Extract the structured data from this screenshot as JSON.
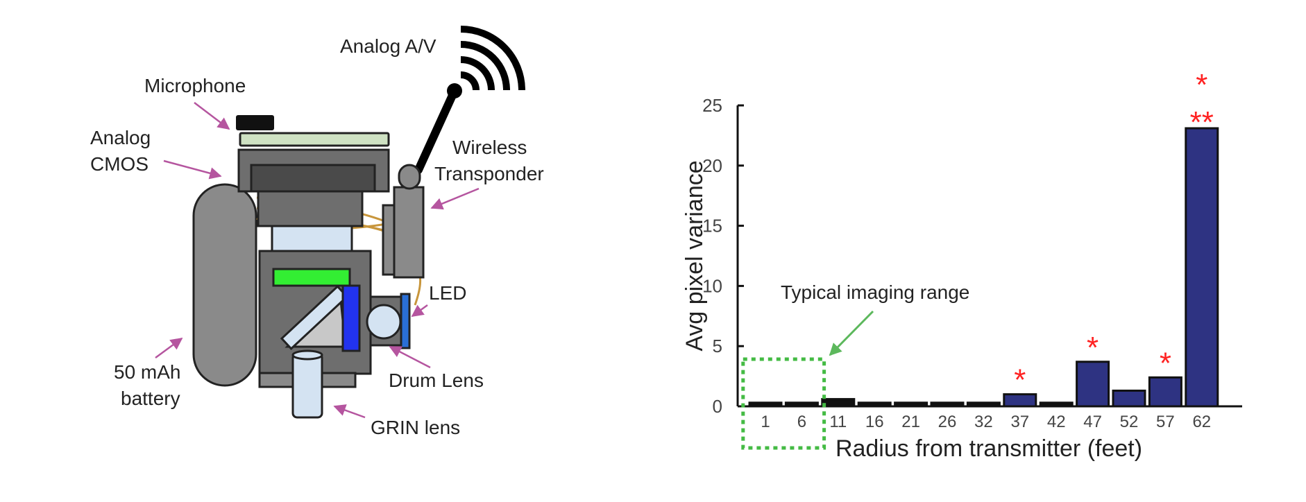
{
  "diagram": {
    "labels": {
      "analog_av": "Analog A/V",
      "microphone": "Microphone",
      "analog_cmos": [
        "Analog",
        "CMOS"
      ],
      "wireless_transponder": [
        "Wireless",
        "Transponder"
      ],
      "led": "LED",
      "battery": [
        "50 mAh",
        "battery"
      ],
      "drum_lens": "Drum Lens",
      "grin_lens": "GRIN lens"
    },
    "colors": {
      "arrow": "#b5559f",
      "body": "#6e6e6e",
      "body_dark": "#4a4a4a",
      "panel_green": "#cfe2c3",
      "filter_green": "#33ee33",
      "filter_blue": "#2233ee",
      "lens_blue": "#d4e3f2",
      "wire": "#c8963c"
    }
  },
  "chart_data": {
    "type": "bar",
    "categories": [
      "1",
      "6",
      "11",
      "16",
      "21",
      "26",
      "32",
      "37",
      "42",
      "47",
      "52",
      "57",
      "62"
    ],
    "values": [
      0.3,
      0.3,
      0.6,
      0.3,
      0.3,
      0.3,
      0.3,
      1.0,
      0.3,
      3.7,
      1.3,
      2.4,
      23.1
    ],
    "significance": [
      "",
      "",
      "",
      "",
      "",
      "",
      "",
      "*",
      "",
      "*",
      "",
      "*",
      "***"
    ],
    "xlabel": "Radius from transmitter  (feet)",
    "ylabel": "Avg pixel variance",
    "yticks": [
      0,
      5,
      10,
      15,
      20,
      25
    ],
    "ylim": [
      0,
      25
    ],
    "annotation": "Typical imaging range",
    "highlighted_categories": [
      "1",
      "6"
    ],
    "colors": {
      "bar_fill": "#2e3382",
      "bar_dark": "#111111",
      "significance": "#ff2222",
      "highlight_box": "#44bb44"
    },
    "grid": false
  }
}
